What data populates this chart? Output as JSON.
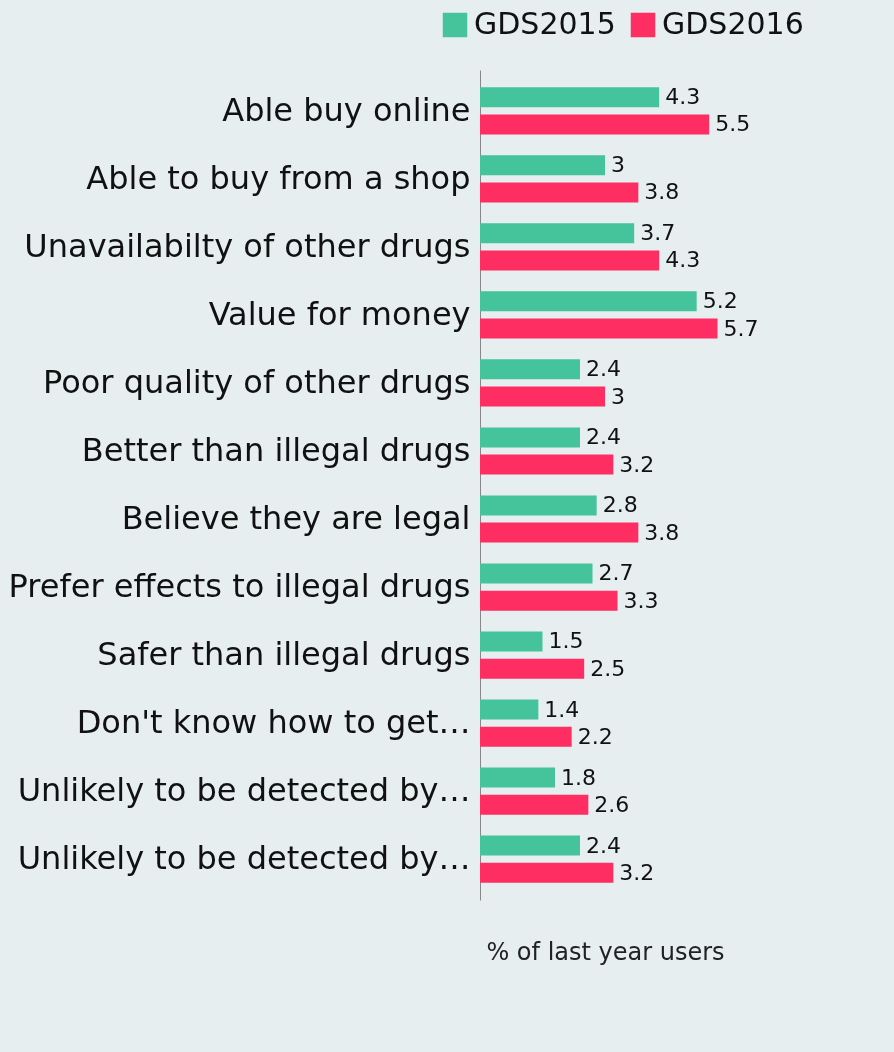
{
  "chart_data": {
    "type": "bar",
    "orientation": "horizontal",
    "xlabel": "% of last year users",
    "legend": "top",
    "grid": false,
    "data_labels": true,
    "categories": [
      "Able buy online",
      "Able to buy from a shop",
      "Unavailabilty of other drugs",
      "Value for money",
      "Poor quality of other drugs",
      "Better than illegal drugs",
      "Believe they are legal",
      "Prefer effects to illegal drugs",
      "Safer than illegal drugs",
      "Don't know how to get…",
      "Unlikely to be detected by…",
      "Unlikely to be detected by…"
    ],
    "series": [
      {
        "name": "GDS2015",
        "color": "#45c39a",
        "values": [
          4.3,
          3,
          3.7,
          5.2,
          2.4,
          2.4,
          2.8,
          2.7,
          1.5,
          1.4,
          1.8,
          2.4
        ]
      },
      {
        "name": "GDS2016",
        "color": "#fe2d62",
        "values": [
          5.5,
          3.8,
          4.3,
          5.7,
          3,
          3.2,
          3.8,
          3.3,
          2.5,
          2.2,
          2.6,
          3.2
        ]
      }
    ]
  }
}
